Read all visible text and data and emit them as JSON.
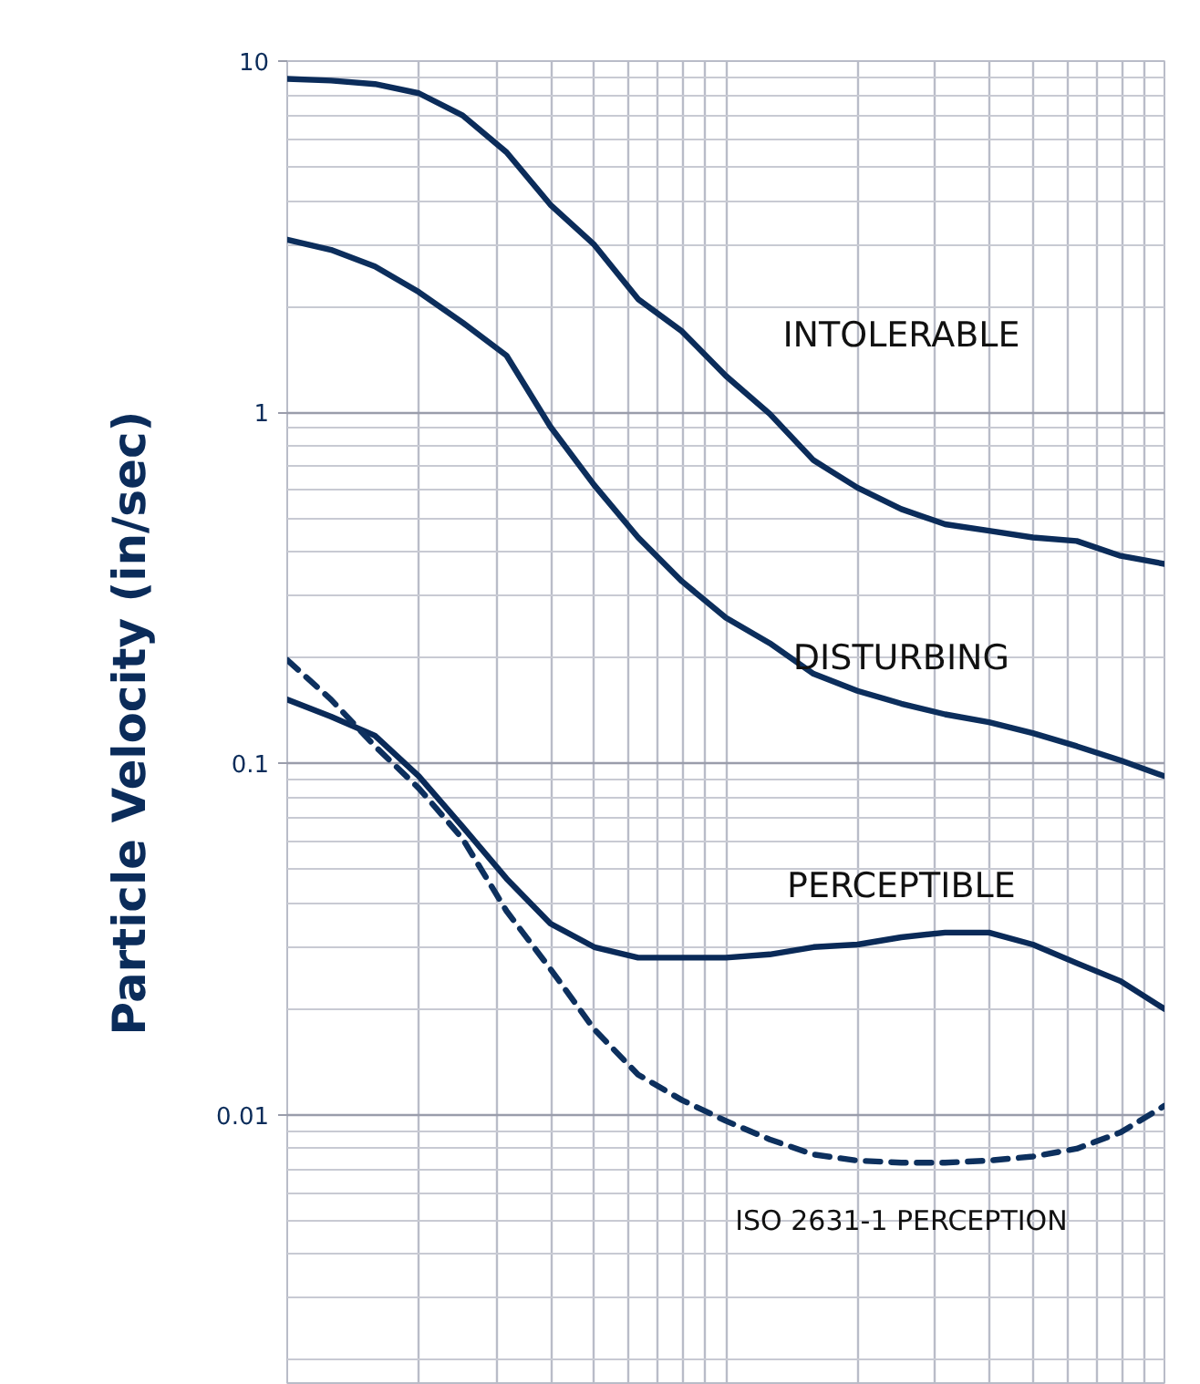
{
  "chart_data": {
    "type": "line",
    "ylabel": "Particle Velocity (in/sec)",
    "log": "y",
    "grid": true,
    "marker": "none",
    "categories": [
      null,
      null,
      null,
      null,
      null,
      null,
      null,
      null,
      null,
      null,
      null,
      null,
      null,
      null,
      null,
      null,
      null,
      null,
      null,
      null,
      null
    ],
    "ylim": [
      0.0017,
      10
    ],
    "yticks": [
      0.01,
      0.1,
      1,
      10
    ],
    "series": [
      {
        "color": "#0b2c5a",
        "line_style": "solid",
        "values": [
          8.9,
          8.8,
          8.6,
          8.1,
          7.0,
          5.5,
          3.9,
          3.0,
          2.1,
          1.7,
          1.27,
          0.99,
          0.73,
          0.61,
          0.53,
          0.48,
          0.46,
          0.44,
          0.43,
          0.39,
          0.37
        ]
      },
      {
        "color": "#0c2e5c",
        "line_style": "solid",
        "values": [
          3.1,
          2.9,
          2.6,
          2.2,
          1.8,
          1.45,
          0.91,
          0.62,
          0.44,
          0.33,
          0.26,
          0.22,
          0.18,
          0.161,
          0.148,
          0.138,
          0.131,
          0.122,
          0.112,
          0.102,
          0.092
        ]
      },
      {
        "color": "#0a2a58",
        "line_style": "solid",
        "values": [
          0.152,
          0.136,
          0.12,
          0.092,
          0.066,
          0.047,
          0.035,
          0.03,
          0.028,
          0.028,
          0.028,
          0.0286,
          0.03,
          0.0305,
          0.032,
          0.033,
          0.033,
          0.0305,
          0.027,
          0.024,
          0.02
        ]
      },
      {
        "color": "#0d305e",
        "line_style": "dashed",
        "values": [
          0.197,
          0.152,
          0.112,
          0.085,
          0.061,
          0.038,
          0.026,
          0.0175,
          0.013,
          0.011,
          0.0096,
          0.0085,
          0.0077,
          0.0074,
          0.0073,
          0.0073,
          0.0074,
          0.0076,
          0.008,
          0.0089,
          0.0106
        ]
      }
    ],
    "annotations": [
      "INTOLERABLE",
      "DISTURBING",
      "PERCEPTIBLE",
      "ISO 2631-1 PERCEPTION"
    ]
  }
}
